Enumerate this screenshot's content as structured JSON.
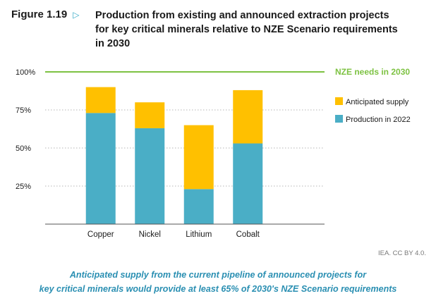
{
  "figure": {
    "label": "Figure 1.19",
    "title_lines": [
      "Production from existing and announced extraction projects",
      "for key critical minerals relative to NZE Scenario requirements",
      "in 2030"
    ]
  },
  "colors": {
    "production": "#4aaec6",
    "anticipated": "#ffc000",
    "target": "#7dc242",
    "title_accent": "#35a8c6",
    "caption": "#2a8fb2"
  },
  "chart_data": {
    "type": "bar",
    "stacked": true,
    "categories": [
      "Copper",
      "Nickel",
      "Lithium",
      "Cobalt"
    ],
    "series": [
      {
        "name": "Production in 2022",
        "values": [
          73,
          63,
          23,
          53
        ]
      },
      {
        "name": "Anticipated supply",
        "values": [
          17,
          17,
          42,
          35
        ]
      }
    ],
    "ylim": [
      0,
      100
    ],
    "yticks": [
      25,
      50,
      75,
      100
    ],
    "ytick_labels": [
      "25%",
      "50%",
      "75%",
      "100%"
    ],
    "reference_line": {
      "value": 100,
      "label": "NZE needs in 2030"
    },
    "legend_position": "right"
  },
  "credit": "IEA. CC BY 4.0.",
  "caption_lines": [
    "Anticipated supply from the current pipeline of announced projects for",
    "key critical minerals would provide at least 65% of 2030's NZE Scenario requirements"
  ]
}
